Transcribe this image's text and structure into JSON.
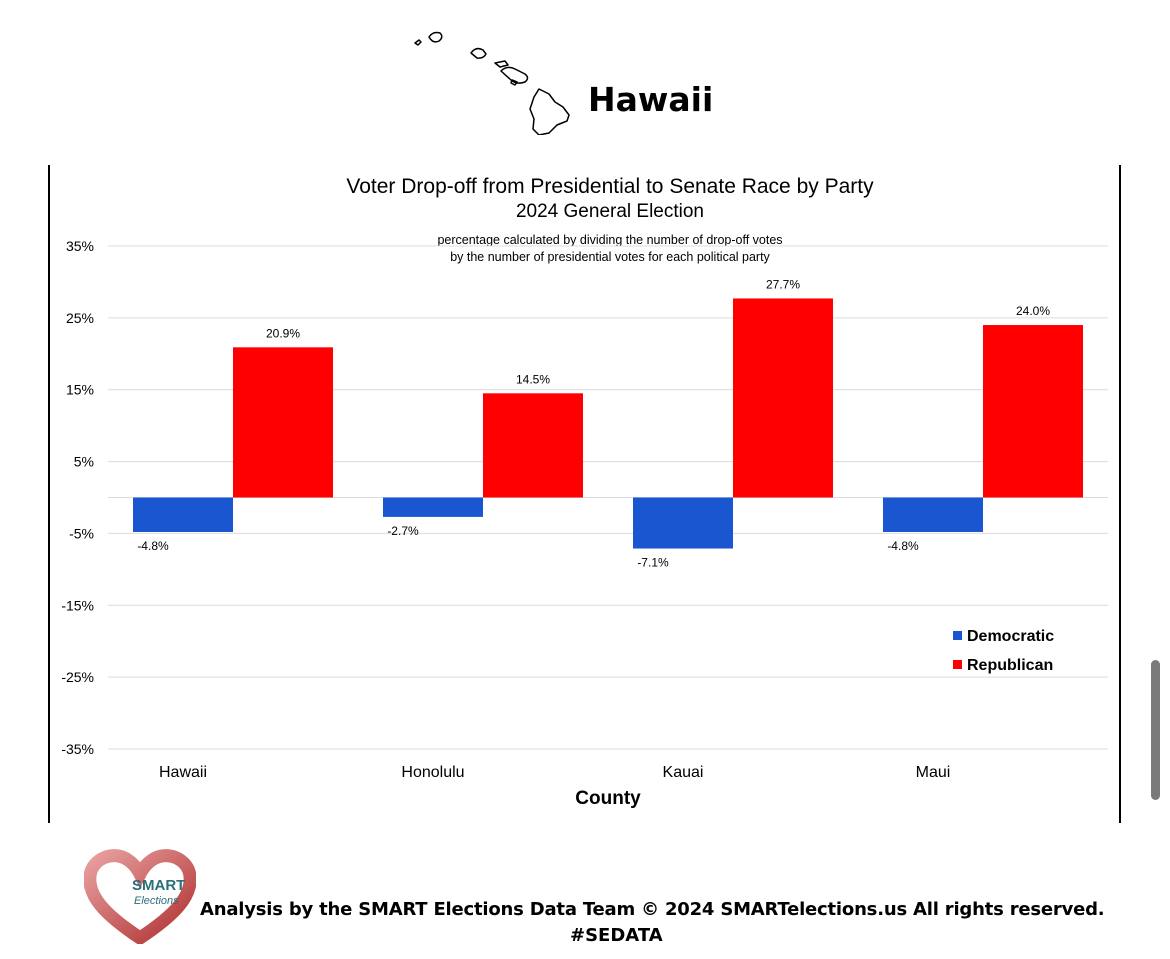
{
  "header": {
    "title": "Hawaii"
  },
  "chart_data": {
    "type": "bar",
    "title": "Voter Drop-off from Presidential to Senate Race by Party",
    "subtitle": "2024 General Election",
    "note": [
      "percentage calculated by dividing the number of drop-off votes",
      "by the number of presidential votes for each political party"
    ],
    "categories": [
      "Hawaii",
      "Honolulu",
      "Kauai",
      "Maui"
    ],
    "series": [
      {
        "name": "Democratic",
        "color": "#1a56cf",
        "values": [
          -4.8,
          -2.7,
          -7.1,
          -4.8
        ],
        "labels": [
          "-4.8%",
          "-2.7%",
          "-7.1%",
          "-4.8%"
        ]
      },
      {
        "name": "Republican",
        "color": "#ff0000",
        "values": [
          20.9,
          14.5,
          27.7,
          24.0
        ],
        "labels": [
          "20.9%",
          "14.5%",
          "27.7%",
          "24.0%"
        ]
      }
    ],
    "xlabel": "County",
    "ylabel": "",
    "ylim": [
      -35,
      35
    ],
    "yticks": [
      35,
      25,
      15,
      5,
      -5,
      -15,
      -25,
      -35
    ],
    "ytick_labels": [
      "35%",
      "25%",
      "15%",
      "5%",
      "-5%",
      "-15%",
      "-25%",
      "-35%"
    ],
    "grid": true,
    "legend": "right"
  },
  "footer": {
    "logo_text": [
      "SMART",
      "Elections"
    ],
    "credit": "Analysis by the SMART Elections Data Team © 2024 SMARTelections.us All rights reserved.",
    "tag": "#SEDATA"
  }
}
